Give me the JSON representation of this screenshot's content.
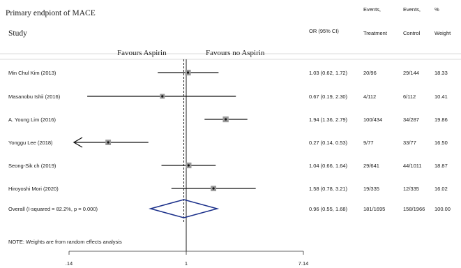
{
  "chart_data": {
    "type": "forest",
    "title": "Primary endpiont of MACE",
    "column_headers": {
      "study": "Study",
      "or": "OR (95% CI)",
      "events_treatment": [
        "Events,",
        "Treatment"
      ],
      "events_control": [
        "Events,",
        "Control"
      ],
      "weight": [
        "%",
        "Weight"
      ]
    },
    "favours_left": "Favours Aspirin",
    "favours_right": "Favours  no Aspirin",
    "xaxis": {
      "scale": "log",
      "xlim": [
        0.14,
        7.14
      ],
      "ticks": [
        ".14",
        "1",
        "7.14"
      ]
    },
    "null_line": 1,
    "overall_line": 0.96,
    "studies": [
      {
        "name": "Min Chul Kim (2013)",
        "or": 1.03,
        "lo": 0.62,
        "hi": 1.72,
        "ci_text": "1.03 (0.62, 1.72)",
        "treatment": "20/96",
        "control": "29/144",
        "weight": 18.33,
        "weight_text": "18.33"
      },
      {
        "name": "Masanobu Ishii (2016)",
        "or": 0.67,
        "lo": 0.19,
        "hi": 2.3,
        "ci_text": "0.67 (0.19, 2.30)",
        "treatment": "4/112",
        "control": "6/112",
        "weight": 10.41,
        "weight_text": "10.41"
      },
      {
        "name": "A. Young Lim (2016)",
        "or": 1.94,
        "lo": 1.36,
        "hi": 2.79,
        "ci_text": "1.94 (1.36, 2.79)",
        "treatment": "100/434",
        "control": "34/287",
        "weight": 19.86,
        "weight_text": "19.86"
      },
      {
        "name": "Yonggu Lee (2018)",
        "or": 0.27,
        "lo": 0.14,
        "hi": 0.53,
        "ci_text": "0.27 (0.14, 0.53)",
        "treatment": "9/77",
        "control": "33/77",
        "weight": 16.5,
        "weight_text": "16.50",
        "arrow_left": true
      },
      {
        "name": "Seong-Sik ch (2019)",
        "or": 1.04,
        "lo": 0.66,
        "hi": 1.64,
        "ci_text": "1.04 (0.66, 1.64)",
        "treatment": "29/641",
        "control": "44/1011",
        "weight": 18.87,
        "weight_text": "18.87"
      },
      {
        "name": "Hiroyoshi Mori (2020)",
        "or": 1.58,
        "lo": 0.78,
        "hi": 3.21,
        "ci_text": "1.58 (0.78, 3.21)",
        "treatment": "19/335",
        "control": "12/335",
        "weight": 16.02,
        "weight_text": "16.02"
      }
    ],
    "overall": {
      "label": "Overall  (I-squared = 82.2%, p = 0.000)",
      "or": 0.96,
      "lo": 0.55,
      "hi": 1.68,
      "ci_text": "0.96 (0.55, 1.68)",
      "treatment": "181/1695",
      "control": "158/1966",
      "weight_text": "100.00"
    },
    "note": "NOTE: Weights are from random effects analysis",
    "colors": {
      "diamond": "#1a2f8a",
      "marker": "#9a9a9a",
      "text": "#1a1a1a"
    }
  }
}
